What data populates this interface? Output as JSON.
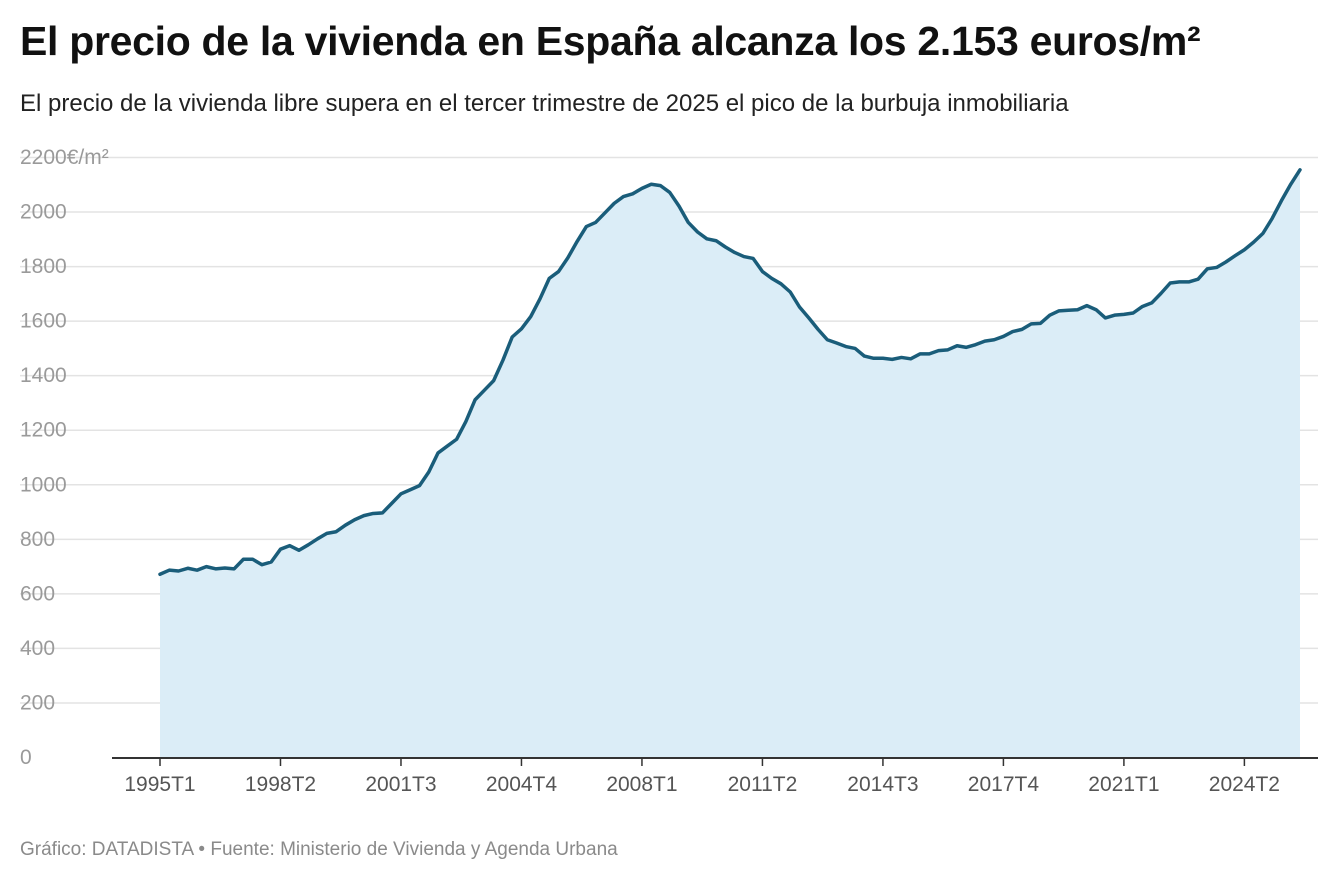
{
  "header": {
    "title": "El precio de la vivienda en España alcanza los 2.153 euros/m²",
    "subtitle": "El precio de la vivienda libre supera en el tercer trimestre de 2025 el pico de la burbuja inmobiliaria"
  },
  "footer": {
    "credit": "Gráfico: DATADISTA • Fuente: Ministerio de Vivienda y Agenda Urbana"
  },
  "colors": {
    "line": "#1a5d7a",
    "area": "#dbedf7",
    "grid": "#e3e3e3"
  },
  "chart_data": {
    "type": "area",
    "title": "El precio de la vivienda en España alcanza los 2.153 euros/m²",
    "subtitle": "El precio de la vivienda libre supera en el tercer trimestre de 2025 el pico de la burbuja inmobiliaria",
    "x_start": "1995T1",
    "x_end": "2025T3",
    "x_ticks": [
      "1995T1",
      "1998T2",
      "2001T3",
      "2004T4",
      "2008T1",
      "2011T2",
      "2014T3",
      "2017T4",
      "2021T1",
      "2024T2"
    ],
    "y_ticks": [
      0,
      200,
      400,
      600,
      800,
      1000,
      1200,
      1400,
      1600,
      1800,
      2000,
      2200
    ],
    "y_tick_labels": [
      "0",
      "200",
      "400",
      "600",
      "800",
      "1000",
      "1200",
      "1400",
      "1600",
      "1800",
      "2000",
      "2200€/m²"
    ],
    "ylim": [
      0,
      2200
    ],
    "grid": true,
    "series": [
      {
        "values": [
          670,
          685,
          682,
          692,
          685,
          698,
          690,
          693,
          690,
          725,
          725,
          705,
          715,
          762,
          775,
          758,
          778,
          800,
          820,
          826,
          850,
          870,
          885,
          893,
          895,
          930,
          965,
          980,
          995,
          1045,
          1115,
          1140,
          1165,
          1230,
          1310,
          1345,
          1380,
          1455,
          1540,
          1570,
          1615,
          1680,
          1755,
          1780,
          1830,
          1890,
          1945,
          1960,
          1995,
          2030,
          2055,
          2065,
          2085,
          2100,
          2095,
          2070,
          2020,
          1960,
          1925,
          1900,
          1893,
          1870,
          1850,
          1835,
          1828,
          1780,
          1755,
          1735,
          1705,
          1650,
          1610,
          1568,
          1530,
          1518,
          1505,
          1498,
          1470,
          1462,
          1462,
          1458,
          1465,
          1460,
          1478,
          1478,
          1490,
          1493,
          1508,
          1502,
          1512,
          1525,
          1530,
          1542,
          1560,
          1568,
          1588,
          1590,
          1620,
          1636,
          1638,
          1640,
          1655,
          1640,
          1610,
          1620,
          1623,
          1628,
          1652,
          1665,
          1700,
          1738,
          1742,
          1742,
          1752,
          1790,
          1795,
          1815,
          1838,
          1860,
          1888,
          1920,
          1975,
          2040,
          2100,
          2153
        ]
      }
    ],
    "last_value": 2153
  }
}
